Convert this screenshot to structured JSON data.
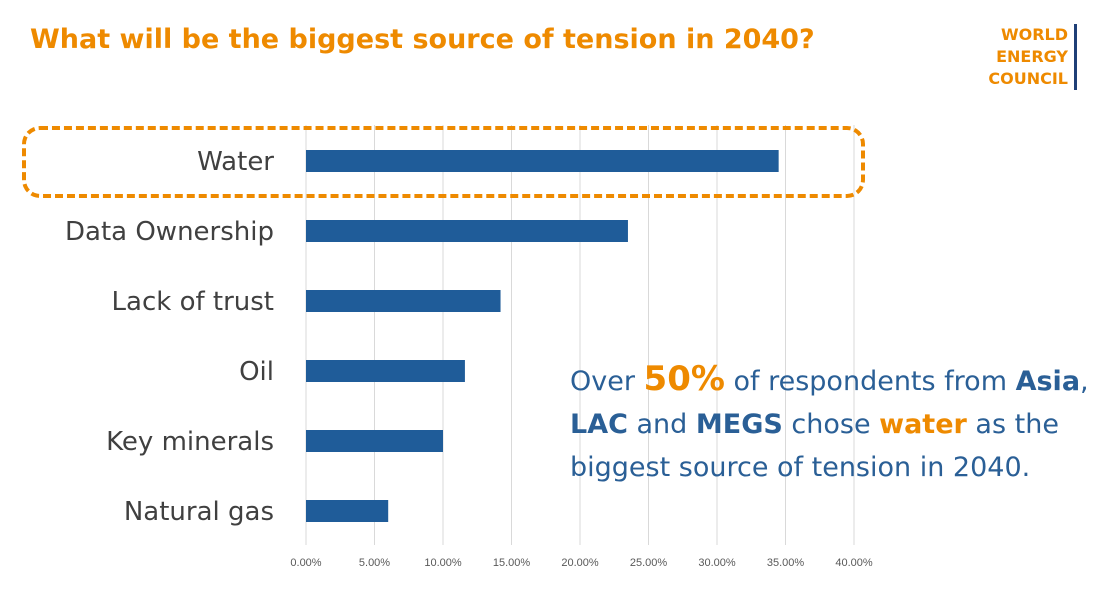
{
  "title": "What will be the biggest source of tension in 2040?",
  "logo": {
    "lines": [
      "WORLD",
      "ENERGY",
      "COUNCIL"
    ]
  },
  "colors": {
    "accent": "#ee8a00",
    "bar": "#1f5c99",
    "note_text": "#2a5f96",
    "logo_bar": "#1f3f77"
  },
  "note": {
    "t1": "Over ",
    "pct": "50%",
    "t2": " of respondents from ",
    "asia": "Asia",
    "t3": ", ",
    "lac": "LAC",
    "t4": " and ",
    "megs": "MEGS",
    "t5": " chose ",
    "water": "water",
    "t6": " as the biggest source of tension in 2040."
  },
  "chart_data": {
    "type": "bar",
    "orientation": "horizontal",
    "categories": [
      "Water",
      "Data Ownership",
      "Lack of trust",
      "Oil",
      "Key minerals",
      "Natural gas"
    ],
    "values": [
      0.345,
      0.235,
      0.142,
      0.116,
      0.1,
      0.06
    ],
    "xlim": [
      0,
      0.4
    ],
    "xticks": [
      "0.00%",
      "5.00%",
      "10.00%",
      "15.00%",
      "20.00%",
      "25.00%",
      "30.00%",
      "35.00%",
      "40.00%"
    ],
    "grid": "vertical",
    "highlighted_category": "Water"
  }
}
